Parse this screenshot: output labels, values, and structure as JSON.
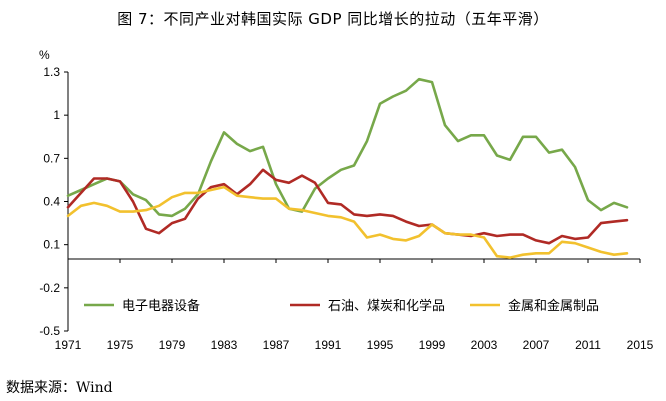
{
  "title": "图 7：不同产业对韩国实际 GDP 同比增长的拉动（五年平滑）",
  "source": "数据来源：Wind",
  "chart_data": {
    "type": "line",
    "ylabel": "%",
    "xlim": [
      1971,
      2015
    ],
    "ylim": [
      -0.5,
      1.3
    ],
    "yticks": [
      1.3,
      1,
      0.7,
      0.4,
      0.1,
      -0.2,
      -0.5
    ],
    "ytick_labels": [
      "1.3",
      "1",
      "0.7",
      "0.4",
      "0.1",
      "-0.2",
      "-0.5"
    ],
    "xticks": [
      1971,
      1975,
      1979,
      1983,
      1987,
      1991,
      1995,
      1999,
      2003,
      2007,
      2011,
      2015
    ],
    "xtick_labels": [
      "1971",
      "1975",
      "1979",
      "1983",
      "1987",
      "1991",
      "1995",
      "1999",
      "2003",
      "2007",
      "2011",
      "2015"
    ],
    "grid": false,
    "legend_position": "bottom-inside",
    "series": [
      {
        "name": "电子电器设备",
        "color": "#77a84a",
        "x": [
          1971,
          1972,
          1973,
          1974,
          1975,
          1976,
          1977,
          1978,
          1979,
          1980,
          1981,
          1982,
          1983,
          1984,
          1985,
          1986,
          1987,
          1988,
          1989,
          1990,
          1991,
          1992,
          1993,
          1994,
          1995,
          1996,
          1997,
          1998,
          1999,
          2000,
          2001,
          2002,
          2003,
          2004,
          2005,
          2006,
          2007,
          2008,
          2009,
          2010,
          2011,
          2012,
          2013,
          2014
        ],
        "y": [
          0.44,
          0.48,
          0.52,
          0.56,
          0.54,
          0.45,
          0.41,
          0.31,
          0.3,
          0.35,
          0.45,
          0.68,
          0.88,
          0.8,
          0.75,
          0.78,
          0.52,
          0.35,
          0.33,
          0.49,
          0.56,
          0.62,
          0.65,
          0.82,
          1.08,
          1.13,
          1.17,
          1.25,
          1.23,
          0.93,
          0.82,
          0.86,
          0.86,
          0.72,
          0.69,
          0.85,
          0.85,
          0.74,
          0.76,
          0.64,
          0.41,
          0.34,
          0.39,
          0.36
        ]
      },
      {
        "name": "石油、煤炭和化学品",
        "color": "#b02a25",
        "x": [
          1971,
          1972,
          1973,
          1974,
          1975,
          1976,
          1977,
          1978,
          1979,
          1980,
          1981,
          1982,
          1983,
          1984,
          1985,
          1986,
          1987,
          1988,
          1989,
          1990,
          1991,
          1992,
          1993,
          1994,
          1995,
          1996,
          1997,
          1998,
          1999,
          2000,
          2001,
          2002,
          2003,
          2004,
          2005,
          2006,
          2007,
          2008,
          2009,
          2010,
          2011,
          2012,
          2013,
          2014
        ],
        "y": [
          0.36,
          0.46,
          0.56,
          0.56,
          0.54,
          0.4,
          0.21,
          0.18,
          0.25,
          0.28,
          0.42,
          0.5,
          0.52,
          0.45,
          0.52,
          0.62,
          0.55,
          0.53,
          0.58,
          0.53,
          0.39,
          0.38,
          0.31,
          0.3,
          0.31,
          0.3,
          0.26,
          0.23,
          0.24,
          0.18,
          0.17,
          0.16,
          0.18,
          0.16,
          0.17,
          0.17,
          0.13,
          0.11,
          0.16,
          0.14,
          0.15,
          0.25,
          0.26,
          0.27
        ]
      },
      {
        "name": "金属和金属制品",
        "color": "#f2c12e",
        "x": [
          1971,
          1972,
          1973,
          1974,
          1975,
          1976,
          1977,
          1978,
          1979,
          1980,
          1981,
          1982,
          1983,
          1984,
          1985,
          1986,
          1987,
          1988,
          1989,
          1990,
          1991,
          1992,
          1993,
          1994,
          1995,
          1996,
          1997,
          1998,
          1999,
          2000,
          2001,
          2002,
          2003,
          2004,
          2005,
          2006,
          2007,
          2008,
          2009,
          2010,
          2011,
          2012,
          2013,
          2014
        ],
        "y": [
          0.3,
          0.37,
          0.39,
          0.37,
          0.33,
          0.33,
          0.34,
          0.37,
          0.43,
          0.46,
          0.46,
          0.48,
          0.5,
          0.44,
          0.43,
          0.42,
          0.42,
          0.35,
          0.34,
          0.32,
          0.3,
          0.29,
          0.26,
          0.15,
          0.17,
          0.14,
          0.13,
          0.16,
          0.24,
          0.18,
          0.17,
          0.17,
          0.15,
          0.02,
          0.01,
          0.03,
          0.04,
          0.04,
          0.12,
          0.11,
          0.08,
          0.05,
          0.03,
          0.04
        ]
      }
    ]
  }
}
